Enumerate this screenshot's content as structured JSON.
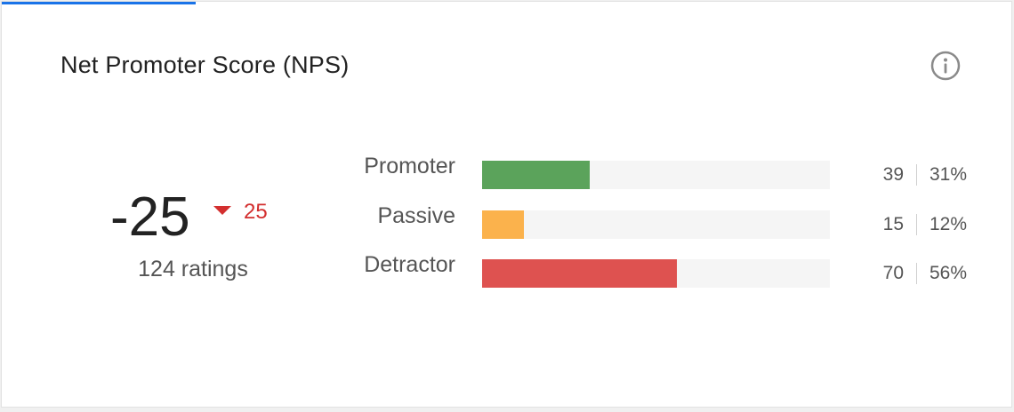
{
  "card": {
    "title": "Net Promoter Score (NPS)",
    "info_icon": "info-circle-icon"
  },
  "score": {
    "value": "-25",
    "delta": "25",
    "delta_direction": "down",
    "delta_color": "#d32f2f",
    "ratings": "124 ratings"
  },
  "breakdown": [
    {
      "label": "Promoter",
      "count": "39",
      "percent": "31%",
      "fraction": 0.31,
      "color": "#5ba35b"
    },
    {
      "label": "Passive",
      "count": "15",
      "percent": "12%",
      "fraction": 0.12,
      "color": "#fbb24c"
    },
    {
      "label": "Detractor",
      "count": "70",
      "percent": "56%",
      "fraction": 0.56,
      "color": "#de5250"
    }
  ],
  "colors": {
    "accent": "#1a73e8",
    "track": "#f5f5f5"
  }
}
